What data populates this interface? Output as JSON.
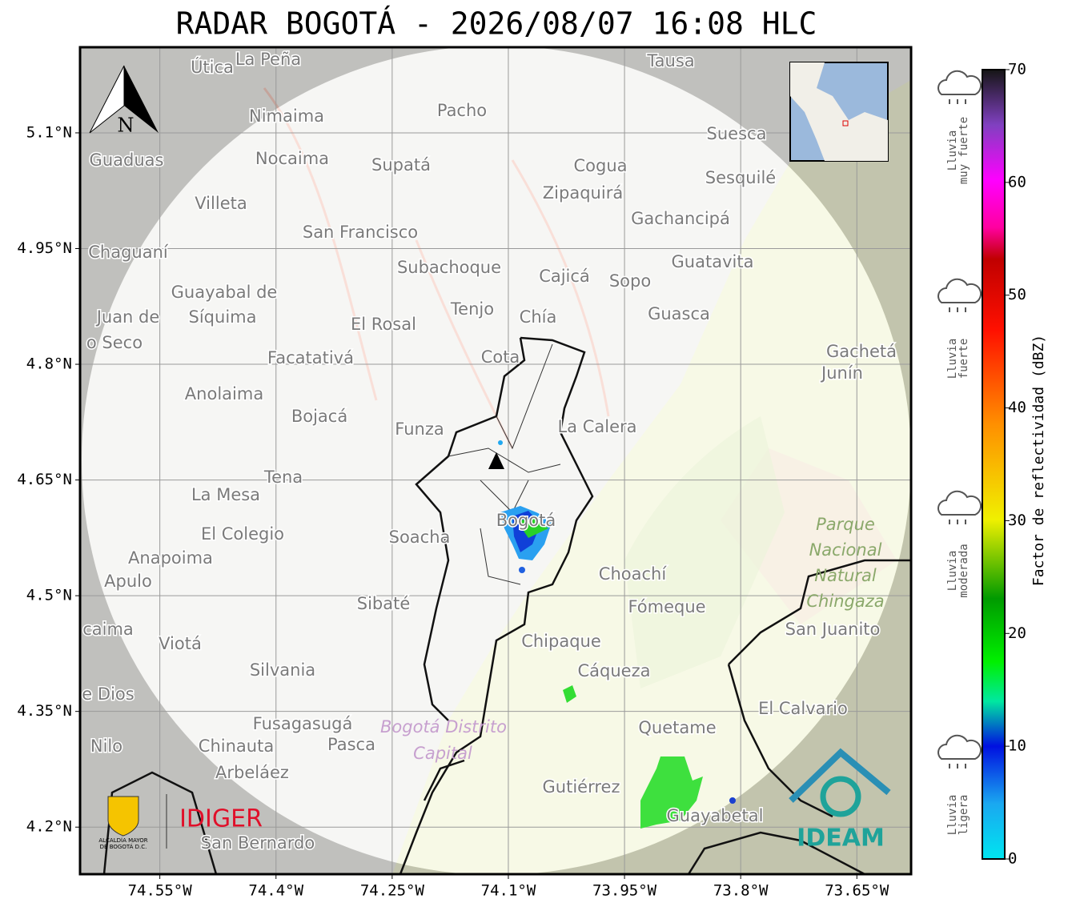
{
  "title": "RADAR BOGOTÁ - 2026/08/07 16:08 HLC",
  "map": {
    "xlim": [
      -74.653,
      -73.58
    ],
    "ylim": [
      4.139,
      5.211
    ],
    "xticks": [
      {
        "value": -74.55,
        "label": "74.55°W"
      },
      {
        "value": -74.4,
        "label": "74.4°W"
      },
      {
        "value": -74.25,
        "label": "74.25°W"
      },
      {
        "value": -74.1,
        "label": "74.1°W"
      },
      {
        "value": -73.95,
        "label": "73.95°W"
      },
      {
        "value": -73.8,
        "label": "73.8°W"
      },
      {
        "value": -73.65,
        "label": "73.65°W"
      }
    ],
    "yticks": [
      {
        "value": 4.2,
        "label": "4.2°N"
      },
      {
        "value": 4.35,
        "label": "4.35°N"
      },
      {
        "value": 4.5,
        "label": "4.5°N"
      },
      {
        "value": 4.65,
        "label": "4.65°N"
      },
      {
        "value": 4.8,
        "label": "4.8°N"
      },
      {
        "value": 4.95,
        "label": "4.95°N"
      },
      {
        "value": 5.1,
        "label": "5.1°N"
      }
    ],
    "north_label": "N",
    "places": [
      "Útica",
      "La Peña",
      "Tausa",
      "Pacho",
      "Nimaima",
      "Guaduas",
      "Nocaima",
      "Supatá",
      "Cogua",
      "Suesca",
      "Sesquilé",
      "Zipaquirá",
      "Villeta",
      "Gachancipá",
      "San Francisco",
      "Chaguaní",
      "Guatavita",
      "Subachoque",
      "Cajicá",
      "Sopo",
      "Guayabal de",
      "Síquima",
      "Tenjo",
      "Chía",
      "Guasca",
      "Juan de",
      "El Rosal",
      "o Seco",
      "Facatativá",
      "Cota",
      "Gachetá",
      "Junín",
      "Anolaima",
      "Bojacá",
      "Funza",
      "La Calera",
      "Tena",
      "La Mesa",
      "Bogotá",
      "Soacha",
      "El Colegio",
      "Anapoima",
      "Apulo",
      "Choachí",
      "Fómeque",
      "Sibaté",
      "San Juanito",
      "caima",
      "Viotá",
      "Chipaque",
      "Cáqueza",
      "Silvania",
      "e Dios",
      "El Calvario",
      "Quetame",
      "Fusagasugá",
      "Nilo",
      "Chinauta",
      "Pasca",
      "Arbeláez",
      "Gutiérrez",
      "Guayabetal",
      "San Bernardo"
    ],
    "park": [
      "Parque",
      "Nacional",
      "Natural",
      "Chingaza"
    ],
    "district": [
      "Bogotá Distrito",
      "Capital"
    ]
  },
  "colorbar": {
    "label": "Factor de reflectividad (dBZ)",
    "lim": [
      0,
      70
    ],
    "ticks": [
      0,
      10,
      20,
      30,
      40,
      50,
      60,
      70
    ]
  },
  "rain_levels": [
    [
      "Lluvia",
      "ligera"
    ],
    [
      "Lluvia",
      "moderada"
    ],
    [
      "Lluvia",
      "fuerte"
    ],
    [
      "Lluvia",
      "muy fuerte"
    ]
  ],
  "logos": {
    "alcaldia": [
      "ALCALDÍA MAYOR",
      "DE BOGOTÁ D.C."
    ],
    "idiger": "IDIGER",
    "ideam": "IDEAM"
  }
}
